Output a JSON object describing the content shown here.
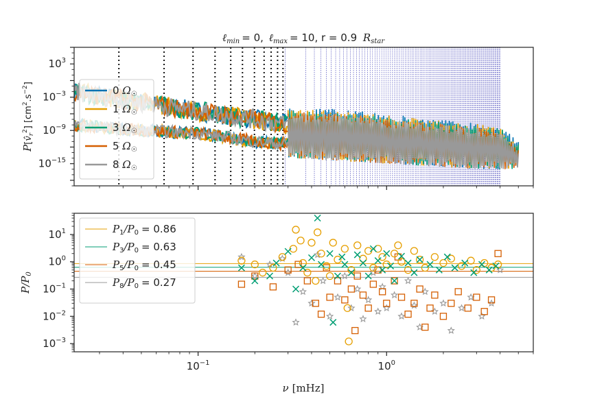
{
  "chart_data": [
    {
      "type": "line",
      "title": "ℓmin = 0, ℓmax = 10, r = 0.9 Rstar",
      "title_parts": {
        "l_min_symbol": "ℓ",
        "l_min_sub": "min",
        "l_min_value": "= 0,",
        "l_max_symbol": "ℓ",
        "l_max_sub": "max",
        "l_max_value": "= 10, r = 0.9",
        "r_unit": "R",
        "r_unit_sub": "star"
      },
      "ylabel": "P[v̂r²] [cm².s⁻²]",
      "x_scale": "log",
      "y_scale": "log",
      "xlim": [
        0.022,
        6.0
      ],
      "ylim": [
        1e-19,
        1000000.0
      ],
      "ytick_labels": [
        {
          "value": 1000.0,
          "base": "10",
          "exp": "3"
        },
        {
          "value": 0.001,
          "base": "10",
          "exp": "−3"
        },
        {
          "value": 1e-09,
          "base": "10",
          "exp": "−9"
        },
        {
          "value": 1e-15,
          "base": "10",
          "exp": "−15"
        }
      ],
      "legend_placement": "upper-left",
      "series": [
        {
          "name": "0 Ω☉",
          "color": "#0072b2"
        },
        {
          "name": "1 Ω☉",
          "color": "#e69f00"
        },
        {
          "name": "3 Ω☉",
          "color": "#009e73"
        },
        {
          "name": "5 Ω☉",
          "color": "#d55e00"
        },
        {
          "name": "8 Ω☉",
          "color": "#999999"
        }
      ],
      "legend_labels": {
        "prefix": [
          "0",
          "1",
          "3",
          "5",
          "8"
        ],
        "symbol": "Ω",
        "sub": "☉"
      },
      "vlines_black_dotted_mhz": [
        0.038,
        0.066,
        0.094,
        0.123,
        0.149,
        0.172,
        0.199,
        0.224,
        0.244,
        0.264,
        0.282
      ],
      "vlines_blue_range_mhz": [
        0.29,
        4.0
      ],
      "vlines_blue_count": 110,
      "spectrum_envelope": {
        "upper_branch": {
          "x": [
            0.022,
            0.05,
            0.1,
            0.2,
            0.3
          ],
          "y": [
            0.01,
            0.0001,
            3e-06,
            1e-07,
            1e-08
          ]
        },
        "lower_branch": {
          "x": [
            0.022,
            0.05,
            0.1,
            0.2,
            0.3
          ],
          "y": [
            1e-08,
            1e-09,
            3e-10,
            1e-11,
            3e-12
          ]
        },
        "hump_x": [
          0.3,
          5.0
        ],
        "hump_peak_y_at": {
          "x": [
            0.3,
            0.5,
            1.0,
            2.0,
            4.0,
            5.0
          ],
          "y": [
            1e-05,
            1e-05,
            1e-06,
            1e-07,
            1e-08,
            1e-11
          ]
        },
        "floor_y_at": {
          "x": [
            0.3,
            1.0,
            3.0,
            5.0
          ],
          "y": [
            1e-14,
            1e-15,
            1e-16,
            1e-16
          ]
        }
      }
    },
    {
      "type": "scatter",
      "xlabel": "ν [mHz]",
      "xlabel_parts": {
        "symbol": "ν",
        "unit": "[mHz]"
      },
      "ylabel": "P/P0",
      "x_scale": "log",
      "y_scale": "log",
      "xlim": [
        0.022,
        6.0
      ],
      "ylim": [
        0.0005,
        60
      ],
      "xtick_labels": [
        {
          "value": 0.1,
          "base": "10",
          "exp": "−1"
        },
        {
          "value": 1.0,
          "base": "10",
          "exp": "0"
        }
      ],
      "ytick_labels": [
        {
          "value": 10,
          "base": "10",
          "exp": "1"
        },
        {
          "value": 1,
          "base": "10",
          "exp": "0"
        },
        {
          "value": 0.1,
          "base": "10",
          "exp": "−1"
        },
        {
          "value": 0.01,
          "base": "10",
          "exp": "−2"
        },
        {
          "value": 0.001,
          "base": "10",
          "exp": "−3"
        }
      ],
      "legend_placement": "upper-left",
      "series": [
        {
          "name": "P1/P0 = 0.86",
          "sub": "1",
          "value": "= 0.86",
          "ratio": 0.86,
          "color": "#e69f00",
          "marker": "circle"
        },
        {
          "name": "P3/P0 = 0.63",
          "sub": "3",
          "value": "= 0.63",
          "ratio": 0.63,
          "color": "#009e73",
          "marker": "x"
        },
        {
          "name": "P5/P0 = 0.45",
          "sub": "5",
          "value": "= 0.45",
          "ratio": 0.45,
          "color": "#d55e00",
          "marker": "square"
        },
        {
          "name": "P8/P0 = 0.27",
          "sub": "8",
          "value": "= 0.27",
          "ratio": 0.27,
          "color": "#999999",
          "marker": "star"
        }
      ],
      "scatter_points": {
        "circle": [
          [
            0.17,
            1.1
          ],
          [
            0.2,
            0.8
          ],
          [
            0.22,
            0.4
          ],
          [
            0.25,
            0.6
          ],
          [
            0.28,
            1.5
          ],
          [
            0.32,
            3.0
          ],
          [
            0.33,
            15
          ],
          [
            0.35,
            6
          ],
          [
            0.36,
            0.9
          ],
          [
            0.38,
            0.4
          ],
          [
            0.4,
            5
          ],
          [
            0.42,
            0.2
          ],
          [
            0.43,
            12
          ],
          [
            0.45,
            2
          ],
          [
            0.48,
            0.7
          ],
          [
            0.5,
            0.3
          ],
          [
            0.52,
            5
          ],
          [
            0.55,
            1.2
          ],
          [
            0.6,
            3
          ],
          [
            0.62,
            0.02
          ],
          [
            0.63,
            0.0012
          ],
          [
            0.65,
            0.5
          ],
          [
            0.7,
            4
          ],
          [
            0.75,
            1.3
          ],
          [
            0.8,
            2.5
          ],
          [
            0.85,
            0.6
          ],
          [
            0.9,
            3
          ],
          [
            0.95,
            1.5
          ],
          [
            1.0,
            0.8
          ],
          [
            1.1,
            2
          ],
          [
            1.15,
            4
          ],
          [
            1.2,
            1
          ],
          [
            1.3,
            0.5
          ],
          [
            1.4,
            2.5
          ],
          [
            1.5,
            1.2
          ],
          [
            1.6,
            0.6
          ],
          [
            1.8,
            1.5
          ],
          [
            2.0,
            0.9
          ],
          [
            2.2,
            1.3
          ],
          [
            2.5,
            0.7
          ],
          [
            2.8,
            1.1
          ],
          [
            3.0,
            0.5
          ],
          [
            3.3,
            0.9
          ],
          [
            3.6,
            0.6
          ],
          [
            3.9,
            0.8
          ]
        ],
        "x": [
          [
            0.17,
            0.6
          ],
          [
            0.2,
            0.2
          ],
          [
            0.24,
            0.3
          ],
          [
            0.26,
            0.9
          ],
          [
            0.3,
            2.4
          ],
          [
            0.33,
            0.1
          ],
          [
            0.36,
            0.6
          ],
          [
            0.4,
            1.4
          ],
          [
            0.43,
            40
          ],
          [
            0.45,
            0.8
          ],
          [
            0.5,
            2
          ],
          [
            0.52,
            0.006
          ],
          [
            0.55,
            0.3
          ],
          [
            0.58,
            1.5
          ],
          [
            0.6,
            0.8
          ],
          [
            0.65,
            0.4
          ],
          [
            0.7,
            1.8
          ],
          [
            0.75,
            0.9
          ],
          [
            0.8,
            0.3
          ],
          [
            0.85,
            3
          ],
          [
            0.9,
            1.1
          ],
          [
            0.95,
            0.5
          ],
          [
            1.0,
            2
          ],
          [
            1.05,
            0.7
          ],
          [
            1.1,
            0.2
          ],
          [
            1.2,
            1.6
          ],
          [
            1.3,
            0.9
          ],
          [
            1.4,
            0.4
          ],
          [
            1.5,
            1.2
          ],
          [
            1.7,
            0.8
          ],
          [
            1.9,
            0.5
          ],
          [
            2.1,
            1.5
          ],
          [
            2.3,
            0.6
          ],
          [
            2.6,
            0.9
          ],
          [
            2.9,
            0.4
          ],
          [
            3.2,
            0.8
          ],
          [
            3.5,
            0.5
          ],
          [
            3.8,
            0.7
          ]
        ],
        "square": [
          [
            0.17,
            0.15
          ],
          [
            0.2,
            0.3
          ],
          [
            0.25,
            0.12
          ],
          [
            0.3,
            0.5
          ],
          [
            0.34,
            0.8
          ],
          [
            0.38,
            0.2
          ],
          [
            0.42,
            0.03
          ],
          [
            0.45,
            0.012
          ],
          [
            0.48,
            0.6
          ],
          [
            0.5,
            0.05
          ],
          [
            0.55,
            0.2
          ],
          [
            0.6,
            0.04
          ],
          [
            0.65,
            0.1
          ],
          [
            0.68,
            0.003
          ],
          [
            0.7,
            0.3
          ],
          [
            0.75,
            0.06
          ],
          [
            0.8,
            0.02
          ],
          [
            0.85,
            0.15
          ],
          [
            0.9,
            0.5
          ],
          [
            0.95,
            0.08
          ],
          [
            1.0,
            0.03
          ],
          [
            1.1,
            0.2
          ],
          [
            1.15,
            1.5
          ],
          [
            1.2,
            0.05
          ],
          [
            1.3,
            0.012
          ],
          [
            1.4,
            0.03
          ],
          [
            1.5,
            0.1
          ],
          [
            1.6,
            0.004
          ],
          [
            1.7,
            0.02
          ],
          [
            1.8,
            0.06
          ],
          [
            2.0,
            0.01
          ],
          [
            2.2,
            0.03
          ],
          [
            2.4,
            0.08
          ],
          [
            2.7,
            0.02
          ],
          [
            3.0,
            0.05
          ],
          [
            3.3,
            0.015
          ],
          [
            3.6,
            0.04
          ],
          [
            3.9,
            2
          ]
        ],
        "star": [
          [
            0.17,
            1.5
          ],
          [
            0.2,
            0.3
          ],
          [
            0.24,
            0.8
          ],
          [
            0.28,
            1.3
          ],
          [
            0.3,
            0.4
          ],
          [
            0.33,
            0.006
          ],
          [
            0.36,
            0.08
          ],
          [
            0.4,
            0.03
          ],
          [
            0.43,
            1.8
          ],
          [
            0.46,
            0.2
          ],
          [
            0.5,
            0.01
          ],
          [
            0.55,
            0.05
          ],
          [
            0.6,
            0.3
          ],
          [
            0.65,
            0.02
          ],
          [
            0.7,
            0.1
          ],
          [
            0.75,
            0.008
          ],
          [
            0.8,
            0.04
          ],
          [
            0.85,
            0.4
          ],
          [
            0.9,
            0.015
          ],
          [
            0.95,
            0.12
          ],
          [
            1.0,
            0.02
          ],
          [
            1.1,
            0.06
          ],
          [
            1.2,
            0.01
          ],
          [
            1.3,
            0.2
          ],
          [
            1.4,
            0.025
          ],
          [
            1.5,
            0.004
          ],
          [
            1.6,
            0.08
          ],
          [
            1.8,
            0.015
          ],
          [
            2.0,
            0.03
          ],
          [
            2.2,
            0.003
          ],
          [
            2.5,
            0.02
          ],
          [
            2.8,
            0.05
          ],
          [
            3.2,
            0.01
          ],
          [
            3.6,
            0.03
          ],
          [
            4.0,
            0.5
          ]
        ]
      }
    }
  ]
}
